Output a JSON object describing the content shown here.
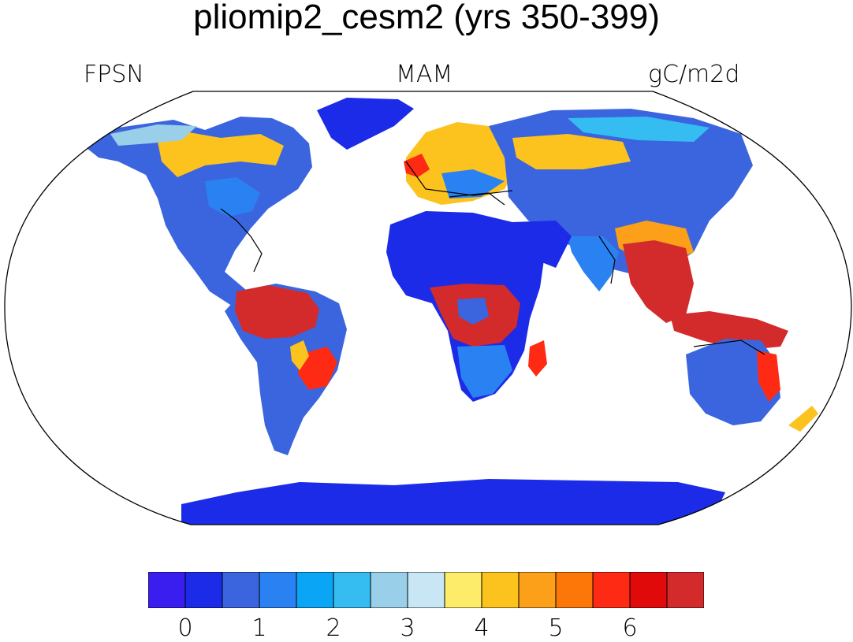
{
  "header": {
    "title": "pliomip2_cesm2 (yrs 350-399)",
    "variable": "FPSN",
    "season": "MAM",
    "units": "gC/m2d"
  },
  "map": {
    "projection": "robinson",
    "land_fill_meaning": "photosynthesis (gC/m2d)",
    "ocean_color": "#ffffff",
    "outline_color": "#000000"
  },
  "colorbar": {
    "colors": [
      "#3a1ef0",
      "#1b2be8",
      "#3b65de",
      "#2a82f2",
      "#0aa6f5",
      "#35bdf2",
      "#99cfe9",
      "#c9e6f5",
      "#fdec6a",
      "#fcc21e",
      "#fba018",
      "#fd7608",
      "#ff2a14",
      "#e00a0a",
      "#d32b2b"
    ],
    "tick_labels": [
      "0",
      "1",
      "2",
      "3",
      "4",
      "5",
      "6"
    ]
  }
}
